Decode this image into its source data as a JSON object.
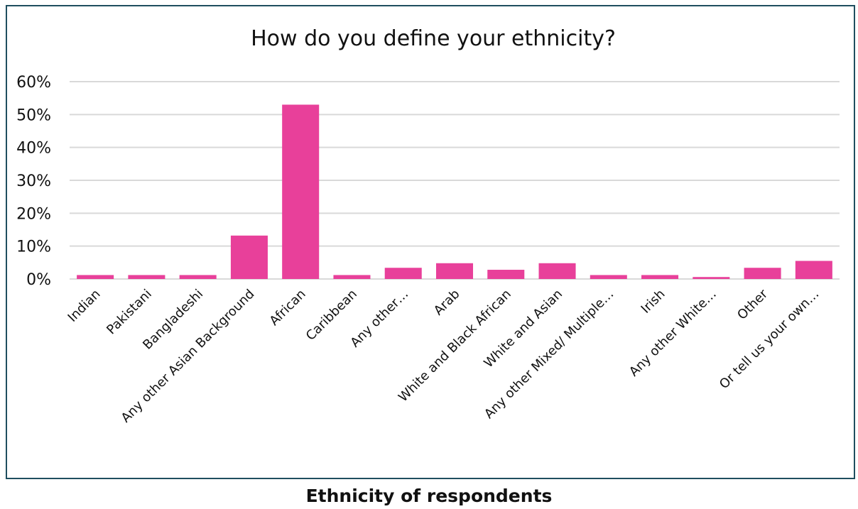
{
  "caption": "Ethnicity of respondents",
  "chart_data": {
    "type": "bar",
    "title": "How do you define your ethnicity?",
    "xlabel": "",
    "ylabel": "",
    "ylim": [
      0,
      60
    ],
    "yticks": [
      0,
      10,
      20,
      30,
      40,
      50,
      60
    ],
    "ytick_labels": [
      "0%",
      "10%",
      "20%",
      "30%",
      "40%",
      "50%",
      "60%"
    ],
    "grid": true,
    "legend": "none",
    "categories": [
      "Indian",
      "Pakistani",
      "Bangladeshi",
      "Any other Asian Background",
      "African",
      "Caribbean",
      "Any other…",
      "Arab",
      "White and Black African",
      "White and Asian",
      "Any other Mixed/ Multiple…",
      "Irish",
      "Any other White…",
      "Other",
      "Or tell us your own…"
    ],
    "values": [
      1.2,
      1.2,
      1.2,
      13.2,
      53,
      1.2,
      3.4,
      4.8,
      2.8,
      4.8,
      1.2,
      1.2,
      0.6,
      3.4,
      5.5
    ],
    "colors": {
      "bar": "#e8409a",
      "grid": "#d9d9d9",
      "frame": "#1f4e5f"
    }
  }
}
